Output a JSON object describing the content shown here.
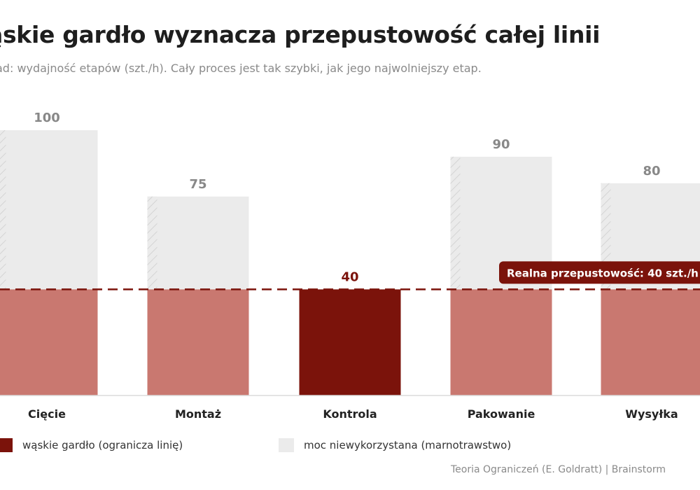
{
  "title": "ąskie gardło wyznacza przepustowość całej linii",
  "subtitle": "ad: wydajność etapów (szt./h). Cały proces jest tak szybki, jak jego najwolniejszy etap.",
  "colors": {
    "bottleneck": "#7b130b",
    "used_capacity": "#c97870",
    "unused_capacity": "#ebebeb",
    "unused_value_label": "#888888",
    "bottleneck_value_label": "#7b130b",
    "reference_line": "#7b130b"
  },
  "chart_data": {
    "type": "bar",
    "title": "ąskie gardło wyznacza przepustowość całej linii",
    "categories": [
      "Cięcie",
      "Montaż",
      "Kontrola",
      "Pakowanie",
      "Wysyłka"
    ],
    "values": [
      100,
      75,
      40,
      90,
      80
    ],
    "bottleneck_index": 2,
    "throughput": 40,
    "throughput_label": "Realna przepustowość: 40 szt./h",
    "ylim": [
      0,
      100
    ],
    "grid": false,
    "legend_position": "bottom-left"
  },
  "legend": [
    {
      "label": "wąskie gardło (ogranicza linię)",
      "color": "#7b130b"
    },
    {
      "label": "moc niewykorzystana (marnotrawstwo)",
      "color": "#ebebeb"
    }
  ],
  "footer": "Teoria Ograniczeń (E. Goldratt)  |  Brainstorm"
}
